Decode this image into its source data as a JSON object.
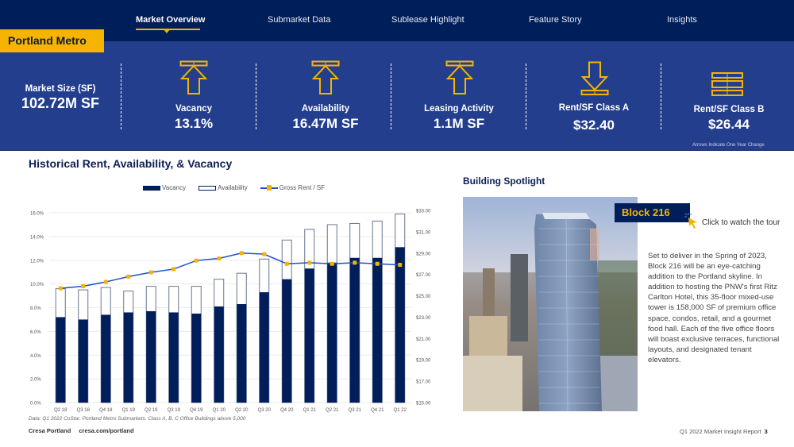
{
  "nav": {
    "items": [
      {
        "label": "Market Overview",
        "active": true
      },
      {
        "label": "Submarket Data",
        "active": false
      },
      {
        "label": "Sublease Highlight",
        "active": false
      },
      {
        "label": "Feature Story",
        "active": false
      },
      {
        "label": "Insights",
        "active": false
      }
    ]
  },
  "region": {
    "label": "Portland Metro"
  },
  "stats": {
    "market_size": {
      "label": "Market Size (SF)",
      "value": "102.72M SF"
    },
    "vacancy": {
      "label": "Vacancy",
      "value": "13.1%",
      "trend": "up"
    },
    "availability": {
      "label": "Availability",
      "value": "16.47M SF",
      "trend": "up"
    },
    "leasing": {
      "label": "Leasing Activity",
      "value": "1.1M SF",
      "trend": "up"
    },
    "rent_a": {
      "label": "Rent/SF Class A",
      "value": "$32.40",
      "trend": "down"
    },
    "rent_b": {
      "label": "Rent/SF Class B",
      "value": "$26.44",
      "trend": "flat"
    },
    "footnote": "Arrows Indicate One Year Change"
  },
  "colors": {
    "navy": "#001e5a",
    "band": "#243e8e",
    "accent_yellow": "#f5b400",
    "rent_line": "#1f4fd0"
  },
  "chart": {
    "title": "Historical Rent, Availability, & Vacancy",
    "legend": {
      "vacancy": "Vacancy",
      "availability": "Availability",
      "rent": "Gross Rent / SF"
    },
    "data_note": "Data: Q1 2022 CoStar. Portland Metro Submarkets. Class A, B, C Office Buildings above 5,000"
  },
  "chart_data": {
    "type": "bar",
    "title": "Historical Rent, Availability, & Vacancy",
    "categories": [
      "Q2 18",
      "Q3 18",
      "Q4 18",
      "Q1 19",
      "Q2 19",
      "Q3 19",
      "Q4 19",
      "Q1 20",
      "Q2 20",
      "Q3 20",
      "Q4 20",
      "Q1 21",
      "Q2 21",
      "Q3 21",
      "Q4 21",
      "Q1 22"
    ],
    "series": [
      {
        "name": "Vacancy",
        "axis": "left",
        "kind": "bar",
        "values": [
          7.2,
          7.0,
          7.4,
          7.6,
          7.7,
          7.6,
          7.5,
          8.1,
          8.3,
          9.3,
          10.4,
          11.3,
          11.8,
          12.2,
          12.2,
          13.1
        ]
      },
      {
        "name": "Availability",
        "axis": "left",
        "kind": "bar-outline",
        "values": [
          9.6,
          9.5,
          9.7,
          9.4,
          9.8,
          9.8,
          9.8,
          10.4,
          10.9,
          12.1,
          13.7,
          14.6,
          15.0,
          15.1,
          15.3,
          15.9
        ]
      },
      {
        "name": "Gross Rent / SF",
        "axis": "right",
        "kind": "line",
        "values": [
          25.7,
          25.9,
          26.3,
          26.8,
          27.2,
          27.5,
          28.3,
          28.5,
          29.0,
          28.9,
          28.0,
          28.1,
          28.0,
          28.1,
          28.0,
          27.9
        ]
      }
    ],
    "left_axis": {
      "ticks": [
        "0.0%",
        "2.0%",
        "4.0%",
        "6.0%",
        "8.0%",
        "10.0%",
        "12.0%",
        "14.0%",
        "16.0%"
      ],
      "range": [
        0,
        16
      ]
    },
    "right_axis": {
      "ticks": [
        "$15.00",
        "$17.00",
        "$19.00",
        "$21.00",
        "$23.00",
        "$25.00",
        "$27.00",
        "$29.00",
        "$31.00",
        "$33.00"
      ],
      "range": [
        15,
        33
      ]
    },
    "xlabel": "",
    "ylabel": "",
    "grid": true,
    "legend_position": "top"
  },
  "spotlight": {
    "title": "Building Spotlight",
    "badge": "Block 216",
    "tour_link": "Click to watch the tour",
    "description": "Set to deliver in the Spring of 2023, Block 216 will be an eye-catching addition to the Portland skyline. In addition to hosting the PNW's first Ritz Carlton Hotel, this 35-floor mixed-use tower is 158,000 SF of premium office space, condos, retail, and a gourmet food hall. Each of the five office floors will boast exclusive terraces, functional layouts, and designated tenant elevators."
  },
  "footer": {
    "brand": "Cresa Portland",
    "url": "cresa.com/portland",
    "report": "Q1 2022 Market Insight Report",
    "page": "3"
  }
}
